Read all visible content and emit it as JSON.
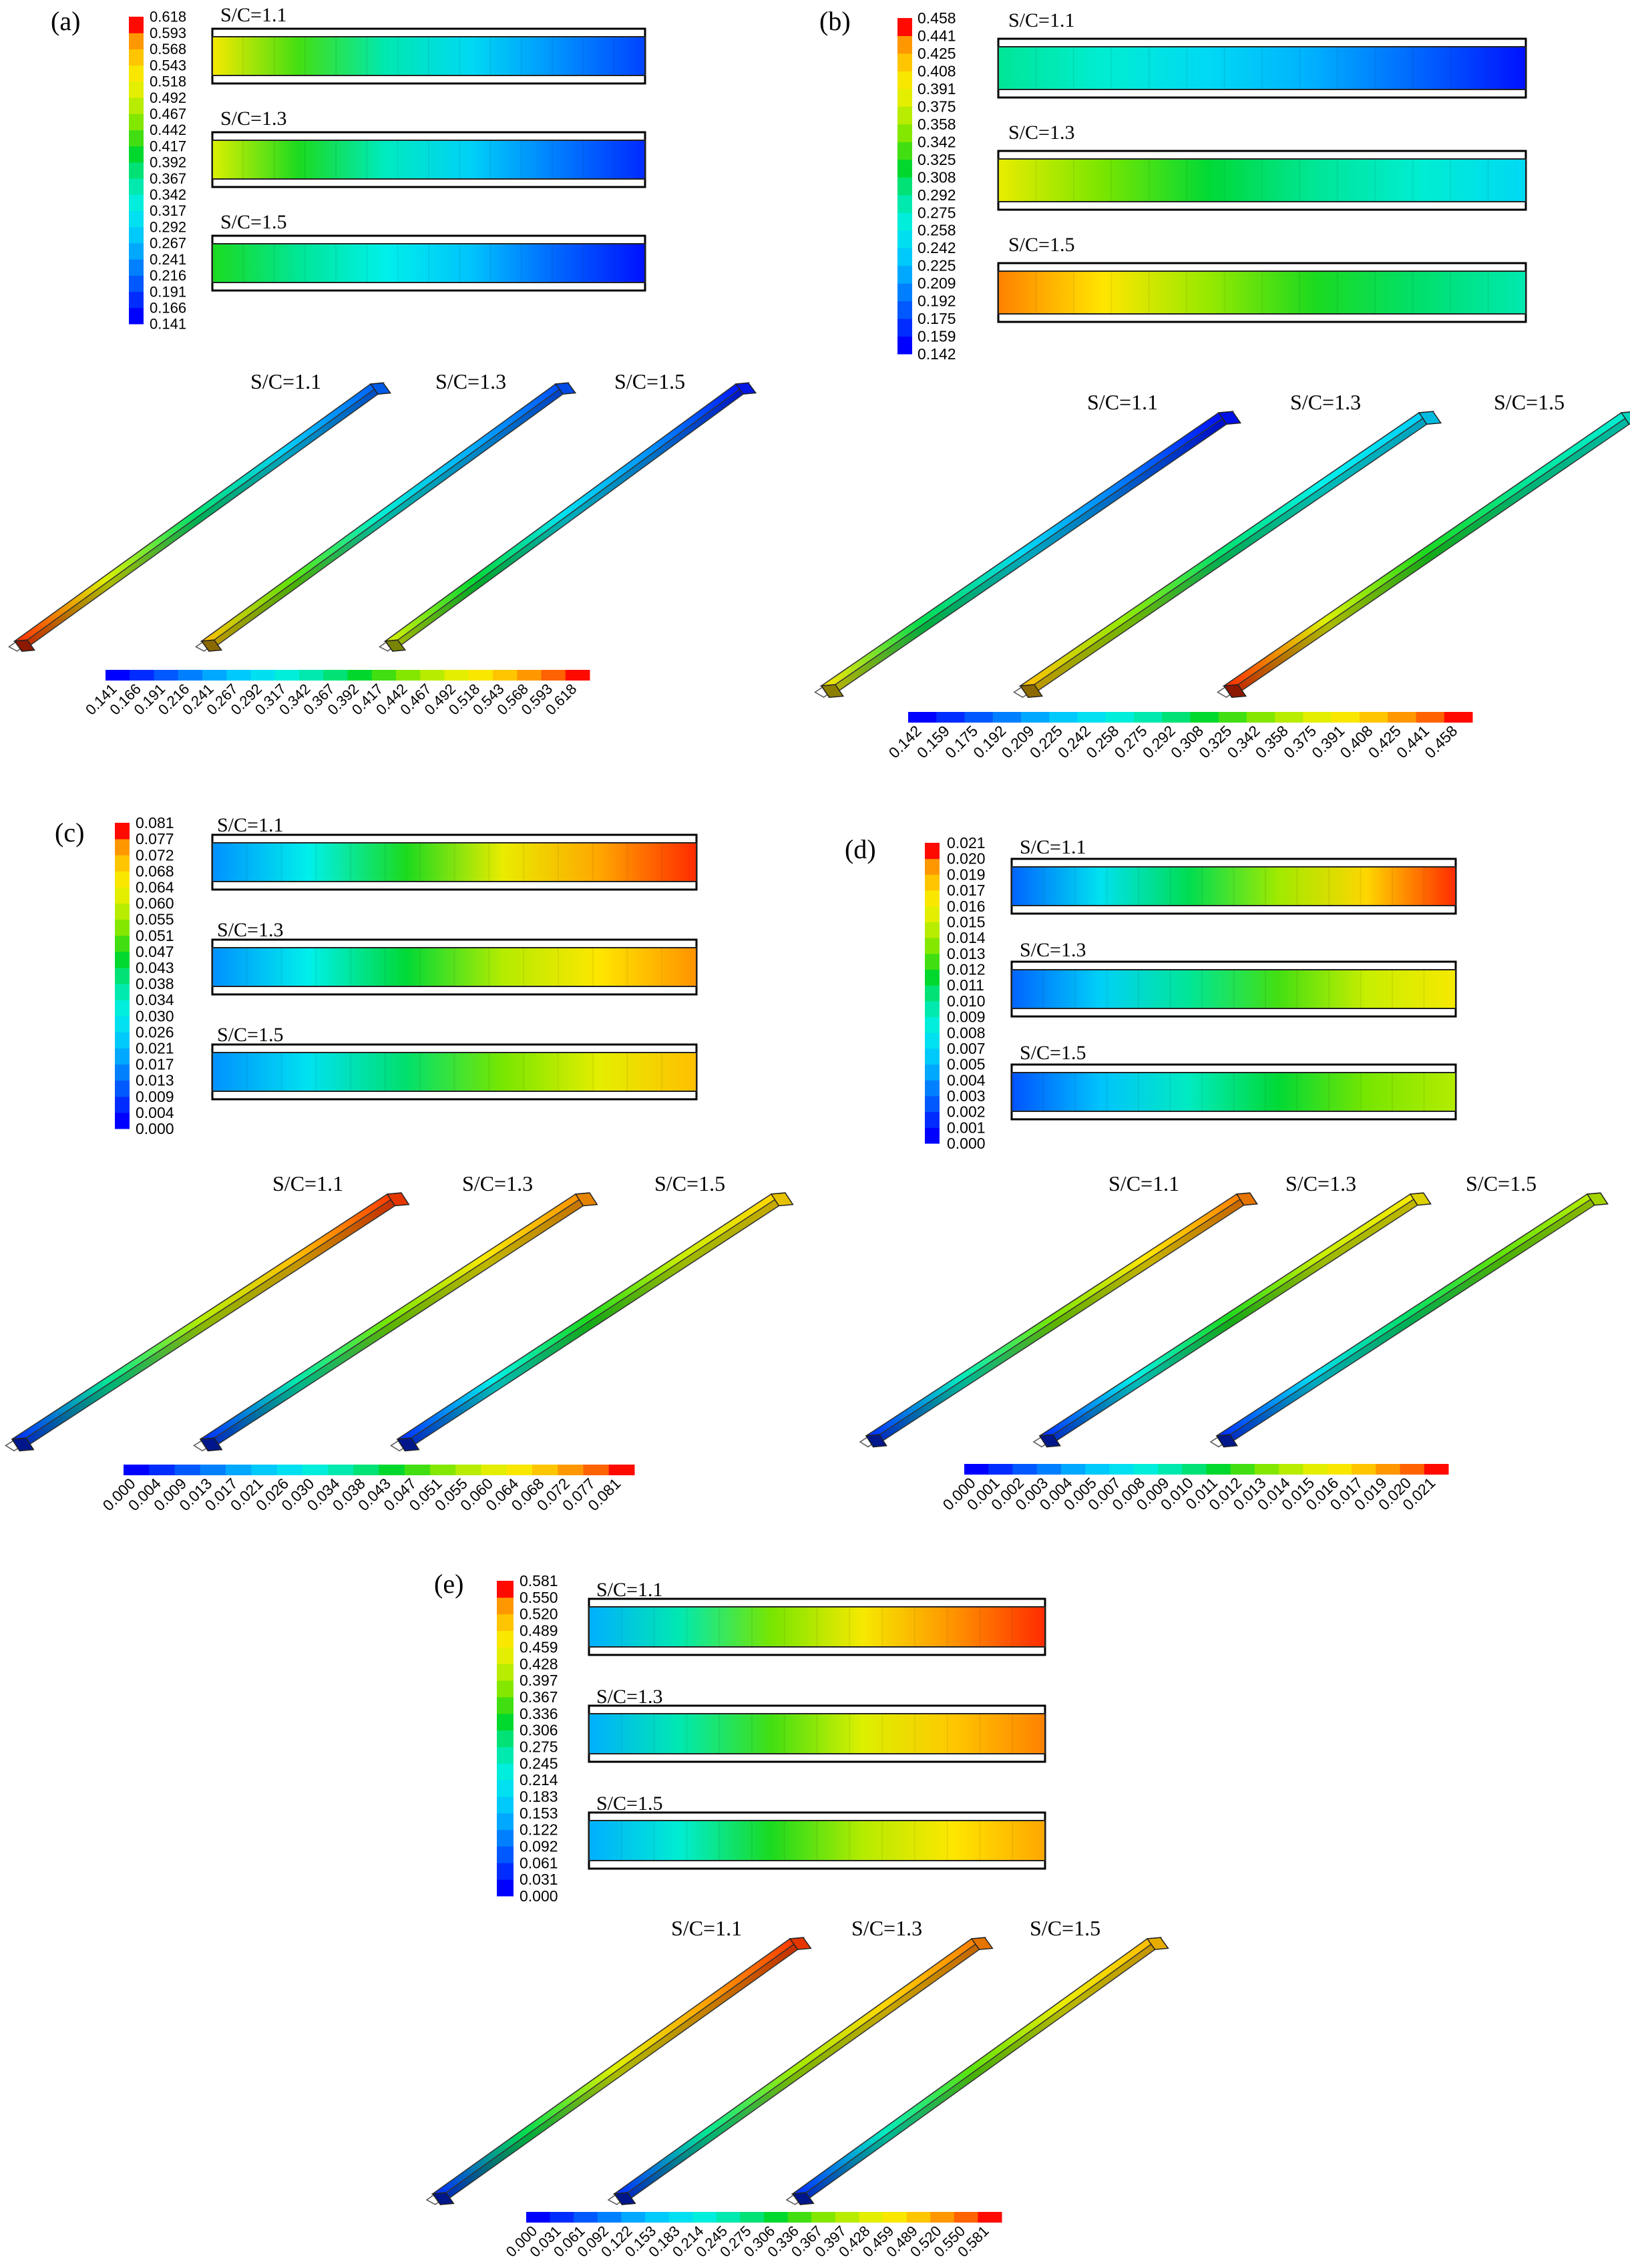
{
  "panels": [
    {
      "label": "(a)",
      "cases": [
        "S/C=1.1",
        "S/C=1.3",
        "S/C=1.5"
      ],
      "ticks": [
        "0.141",
        "0.166",
        "0.191",
        "0.216",
        "0.241",
        "0.267",
        "0.292",
        "0.317",
        "0.342",
        "0.367",
        "0.392",
        "0.417",
        "0.442",
        "0.467",
        "0.492",
        "0.518",
        "0.543",
        "0.568",
        "0.593",
        "0.618"
      ],
      "strips": [
        [
          0.78,
          0.58,
          0.42,
          0.3,
          0.18,
          0.08
        ],
        [
          0.72,
          0.55,
          0.4,
          0.28,
          0.15,
          0.05
        ],
        [
          0.55,
          0.45,
          0.35,
          0.25,
          0.12,
          0.02
        ]
      ],
      "bars": [
        [
          0.98,
          0.72,
          0.48,
          0.28,
          0.12
        ],
        [
          0.85,
          0.6,
          0.38,
          0.22,
          0.1
        ],
        [
          0.72,
          0.52,
          0.32,
          0.18,
          0.03
        ]
      ]
    },
    {
      "label": "(b)",
      "cases": [
        "S/C=1.1",
        "S/C=1.3",
        "S/C=1.5"
      ],
      "ticks": [
        "0.142",
        "0.159",
        "0.175",
        "0.192",
        "0.209",
        "0.225",
        "0.242",
        "0.258",
        "0.275",
        "0.292",
        "0.308",
        "0.325",
        "0.342",
        "0.358",
        "0.375",
        "0.391",
        "0.408",
        "0.425",
        "0.441",
        "0.458"
      ],
      "strips": [
        [
          0.45,
          0.38,
          0.3,
          0.22,
          0.12,
          0.02
        ],
        [
          0.75,
          0.62,
          0.52,
          0.45,
          0.38,
          0.3
        ],
        [
          0.92,
          0.8,
          0.65,
          0.55,
          0.48,
          0.42
        ]
      ],
      "bars": [
        [
          0.8,
          0.5,
          0.3,
          0.15,
          0.02
        ],
        [
          0.85,
          0.65,
          0.48,
          0.35,
          0.28
        ],
        [
          0.98,
          0.72,
          0.55,
          0.45,
          0.38
        ]
      ]
    },
    {
      "label": "(c)",
      "cases": [
        "S/C=1.1",
        "S/C=1.3",
        "S/C=1.5"
      ],
      "ticks": [
        "0.000",
        "0.004",
        "0.009",
        "0.013",
        "0.017",
        "0.021",
        "0.026",
        "0.030",
        "0.034",
        "0.038",
        "0.043",
        "0.047",
        "0.051",
        "0.055",
        "0.060",
        "0.064",
        "0.068",
        "0.072",
        "0.077",
        "0.081"
      ],
      "strips": [
        [
          0.18,
          0.35,
          0.55,
          0.75,
          0.88,
          0.98
        ],
        [
          0.18,
          0.35,
          0.52,
          0.68,
          0.8,
          0.9
        ],
        [
          0.18,
          0.32,
          0.48,
          0.62,
          0.74,
          0.85
        ]
      ],
      "bars": [
        [
          0.05,
          0.45,
          0.68,
          0.85,
          0.97
        ],
        [
          0.05,
          0.42,
          0.62,
          0.78,
          0.9
        ],
        [
          0.05,
          0.35,
          0.55,
          0.7,
          0.82
        ]
      ]
    },
    {
      "label": "(d)",
      "cases": [
        "S/C=1.1",
        "S/C=1.3",
        "S/C=1.5"
      ],
      "ticks": [
        "0.000",
        "0.001",
        "0.002",
        "0.003",
        "0.004",
        "0.005",
        "0.007",
        "0.008",
        "0.009",
        "0.010",
        "0.011",
        "0.012",
        "0.013",
        "0.014",
        "0.015",
        "0.016",
        "0.017",
        "0.019",
        "0.020",
        "0.021"
      ],
      "strips": [
        [
          0.12,
          0.32,
          0.5,
          0.66,
          0.82,
          0.98
        ],
        [
          0.12,
          0.28,
          0.45,
          0.58,
          0.7,
          0.78
        ],
        [
          0.1,
          0.25,
          0.4,
          0.52,
          0.62,
          0.68
        ]
      ],
      "bars": [
        [
          0.05,
          0.4,
          0.62,
          0.8,
          0.92
        ],
        [
          0.05,
          0.35,
          0.55,
          0.7,
          0.78
        ],
        [
          0.05,
          0.3,
          0.48,
          0.6,
          0.68
        ]
      ]
    },
    {
      "label": "(e)",
      "cases": [
        "S/C=1.1",
        "S/C=1.3",
        "S/C=1.5"
      ],
      "ticks": [
        "0.000",
        "0.031",
        "0.061",
        "0.092",
        "0.122",
        "0.153",
        "0.183",
        "0.214",
        "0.245",
        "0.275",
        "0.306",
        "0.336",
        "0.367",
        "0.397",
        "0.428",
        "0.459",
        "0.489",
        "0.520",
        "0.550",
        "0.581"
      ],
      "strips": [
        [
          0.22,
          0.42,
          0.62,
          0.78,
          0.9,
          0.98
        ],
        [
          0.22,
          0.42,
          0.58,
          0.72,
          0.84,
          0.92
        ],
        [
          0.22,
          0.38,
          0.55,
          0.68,
          0.8,
          0.88
        ]
      ],
      "bars": [
        [
          0.05,
          0.5,
          0.72,
          0.88,
          0.97
        ],
        [
          0.05,
          0.45,
          0.66,
          0.82,
          0.92
        ],
        [
          0.05,
          0.4,
          0.6,
          0.75,
          0.85
        ]
      ]
    }
  ]
}
